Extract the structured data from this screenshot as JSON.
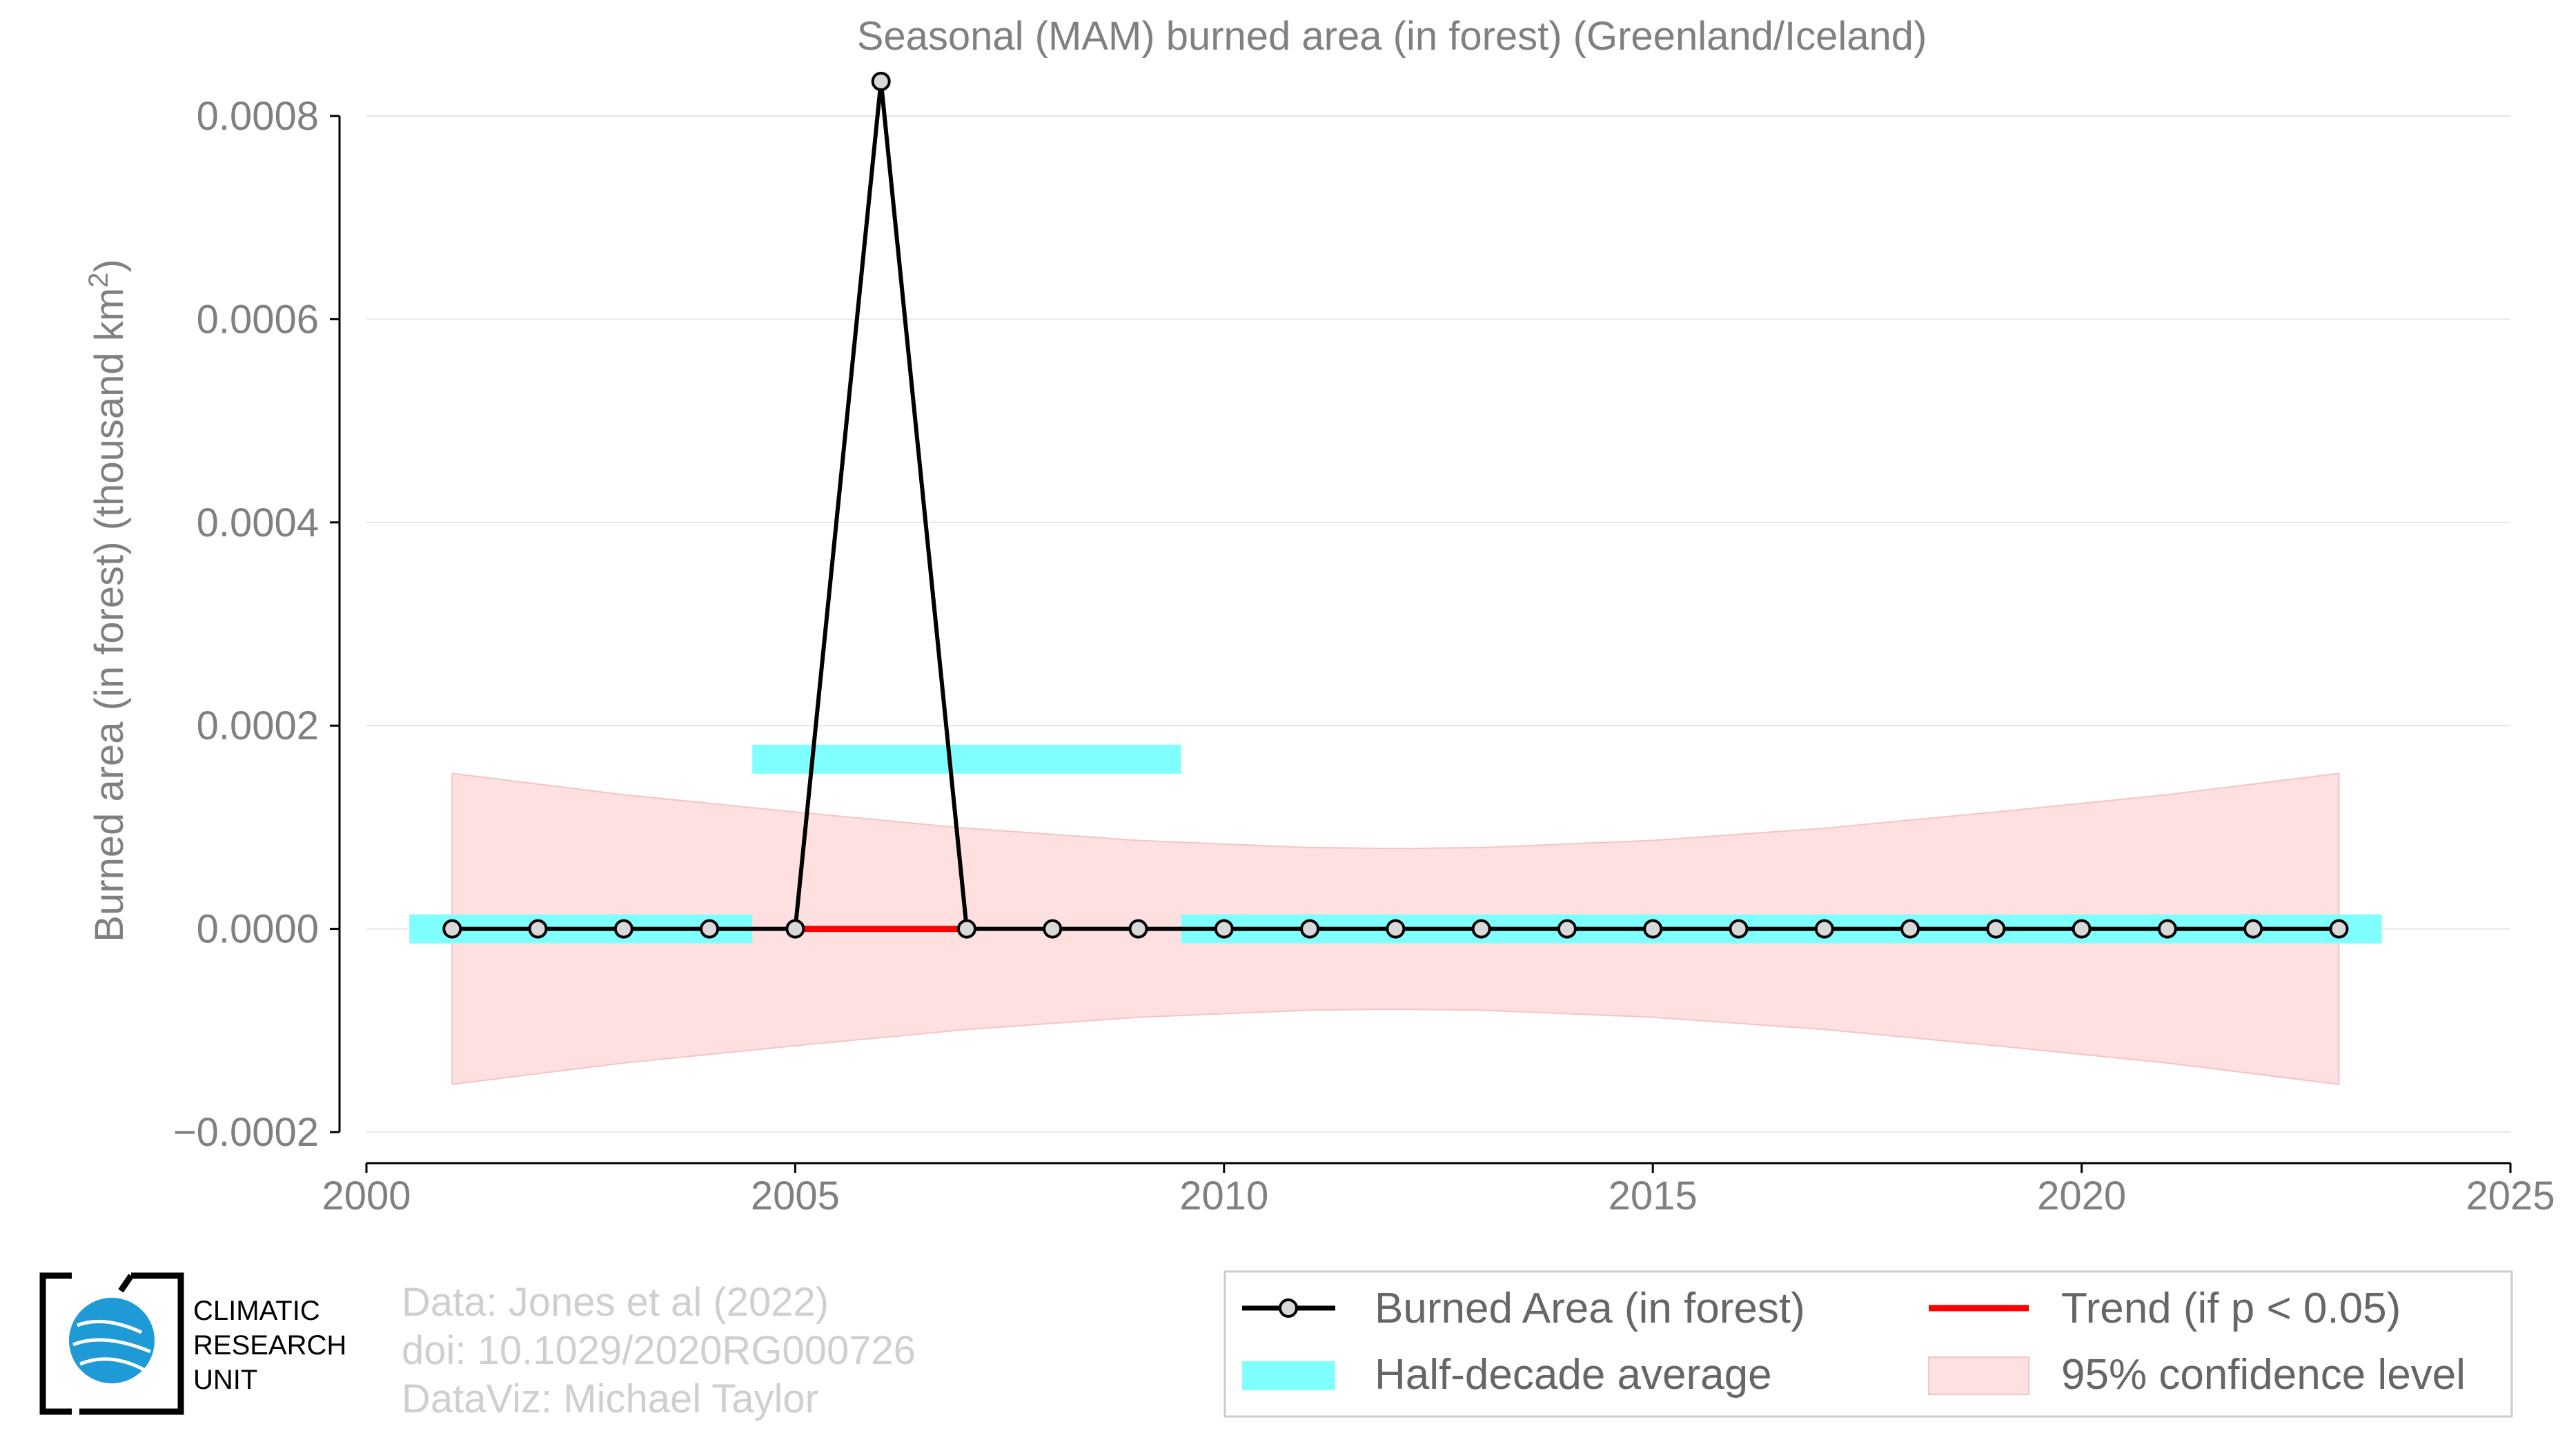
{
  "chart_data": {
    "type": "line",
    "title": "Seasonal (MAM) burned area (in forest) (Greenland/Iceland)",
    "ylabel": "Burned area (in forest) (thousand km",
    "ylabel_sup": "2",
    "ylabel_close": ")",
    "xlabel": "",
    "xlim": [
      2000,
      2025
    ],
    "ylim": [
      -0.0002,
      0.0008
    ],
    "x_ticks": [
      2000,
      2005,
      2010,
      2015,
      2020,
      2025
    ],
    "x_tick_labels": [
      "2000",
      "2005",
      "2010",
      "2015",
      "2020",
      "2025"
    ],
    "y_ticks": [
      -0.0002,
      0.0,
      0.0002,
      0.0004,
      0.0006,
      0.0008
    ],
    "y_tick_labels": [
      "−0.0002",
      "0.0000",
      "0.0002",
      "0.0004",
      "0.0006",
      "0.0008"
    ],
    "grid": "horizontal",
    "series": [
      {
        "name": "Burned Area (in forest)",
        "color": "#000000",
        "x": [
          2001,
          2002,
          2003,
          2004,
          2005,
          2006,
          2007,
          2008,
          2009,
          2010,
          2011,
          2012,
          2013,
          2014,
          2015,
          2016,
          2017,
          2018,
          2019,
          2020,
          2021,
          2022,
          2023
        ],
        "y": [
          0,
          0,
          0,
          0,
          0,
          0.000834,
          0,
          0,
          0,
          0,
          0,
          0,
          0,
          0,
          0,
          0,
          0,
          0,
          0,
          0,
          0,
          0,
          0
        ]
      },
      {
        "name": "Trend (if p < 0.05)",
        "color": "#ff0000",
        "x": [
          2005,
          2007
        ],
        "y": [
          0,
          0
        ]
      }
    ],
    "half_decade_average": {
      "name": "Half-decade average",
      "color": "#80ffff",
      "segments": [
        {
          "x0": 2000.5,
          "x1": 2004.5,
          "y": 0
        },
        {
          "x0": 2004.5,
          "x1": 2009.5,
          "y": 0.000167
        },
        {
          "x0": 2009.5,
          "x1": 2023.5,
          "y": 0
        }
      ]
    },
    "confidence_band": {
      "name": "95% confidence level",
      "color": "#ffcccc",
      "x": [
        2001,
        2003,
        2005,
        2007,
        2009,
        2011,
        2012,
        2013,
        2015,
        2017,
        2019,
        2021,
        2023
      ],
      "upper": [
        0.000153,
        0.000132,
        0.000115,
        9.9e-05,
        8.7e-05,
        8e-05,
        7.9e-05,
        8e-05,
        8.7e-05,
        9.9e-05,
        0.000115,
        0.000132,
        0.000153
      ],
      "lower": [
        -0.000153,
        -0.000132,
        -0.000115,
        -9.9e-05,
        -8.7e-05,
        -8e-05,
        -7.9e-05,
        -8e-05,
        -8.7e-05,
        -9.9e-05,
        -0.000115,
        -0.000132,
        -0.000153
      ]
    },
    "legend_position": "bottom-right"
  },
  "credits": {
    "line1": "Data: Jones et al (2022)",
    "line2": "doi: 10.1029/2020RG000726",
    "line3": "DataViz: Michael Taylor"
  },
  "logo": {
    "line1": "CLIMATIC",
    "line2": "RESEARCH",
    "line3": "UNIT"
  }
}
